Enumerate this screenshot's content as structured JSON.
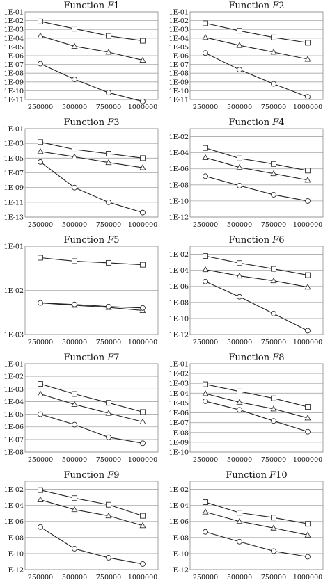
{
  "chart_data": [
    {
      "type": "line",
      "title": "Function F1",
      "y_scale": "log",
      "x": [
        250000,
        500000,
        750000,
        1000000
      ],
      "x_tick_labels": [
        "250000",
        "500000",
        "750000",
        "1000000"
      ],
      "ylim": [
        "1E-11",
        "1E-01"
      ],
      "y_tick_labels": [
        "1E-01",
        "1E-02",
        "1E-03",
        "1E-04",
        "1E-05",
        "1E-06",
        "1E-07",
        "1E-08",
        "1E-09",
        "1E-10",
        "1E-11"
      ],
      "grid": true,
      "series": [
        {
          "marker": "square",
          "values": [
            0.008,
            0.0012,
            0.00018,
            5e-05
          ]
        },
        {
          "marker": "triangle",
          "values": [
            0.00018,
            1.2e-05,
            2.5e-06,
            3e-07
          ]
        },
        {
          "marker": "circle",
          "values": [
            1.2e-07,
            2e-09,
            6e-11,
            6e-12
          ]
        }
      ]
    },
    {
      "type": "line",
      "title": "Function F2",
      "y_scale": "log",
      "x": [
        250000,
        500000,
        750000,
        1000000
      ],
      "x_tick_labels": [
        "250000",
        "500000",
        "750000",
        "1000000"
      ],
      "ylim": [
        "1E-11",
        "1E-01"
      ],
      "y_tick_labels": [
        "1E-01",
        "1E-02",
        "1E-03",
        "1E-04",
        "1E-05",
        "1E-06",
        "1E-07",
        "1E-08",
        "1E-09",
        "1E-10",
        "1E-11"
      ],
      "grid": true,
      "series": [
        {
          "marker": "square",
          "values": [
            0.005,
            0.0007,
            0.00012,
            3e-05
          ]
        },
        {
          "marker": "triangle",
          "values": [
            0.00012,
            1.5e-05,
            2.5e-06,
            4e-07
          ]
        },
        {
          "marker": "circle",
          "values": [
            2e-06,
            2.5e-08,
            6e-10,
            2e-11
          ]
        }
      ]
    },
    {
      "type": "line",
      "title": "Function F3",
      "y_scale": "log",
      "x": [
        250000,
        500000,
        750000,
        1000000
      ],
      "x_tick_labels": [
        "250000",
        "500000",
        "750000",
        "1000000"
      ],
      "ylim": [
        "1E-13",
        "1E-01"
      ],
      "y_tick_labels": [
        "1E-01",
        "1E-03",
        "1E-05",
        "1E-07",
        "1E-09",
        "1E-11",
        "1E-13"
      ],
      "grid": true,
      "series": [
        {
          "marker": "square",
          "values": [
            0.0015,
            0.00015,
            4e-05,
            1e-05
          ]
        },
        {
          "marker": "triangle",
          "values": [
            8e-05,
            1.5e-05,
            2.5e-06,
            5e-07
          ]
        },
        {
          "marker": "circle",
          "values": [
            3e-06,
            1e-09,
            1e-11,
            4e-13
          ]
        }
      ]
    },
    {
      "type": "line",
      "title": "Function F4",
      "y_scale": "log",
      "x": [
        250000,
        500000,
        750000,
        1000000
      ],
      "x_tick_labels": [
        "250000",
        "500000",
        "750000",
        "1000000"
      ],
      "ylim": [
        "1E-12",
        "1E-01"
      ],
      "y_tick_labels": [
        "1E-02",
        "1E-04",
        "1E-06",
        "1E-08",
        "1E-10",
        "1E-12"
      ],
      "grid": true,
      "series": [
        {
          "marker": "square",
          "values": [
            0.0004,
            2e-05,
            4e-06,
            6e-07
          ]
        },
        {
          "marker": "triangle",
          "values": [
            2.5e-05,
            1.5e-06,
            2.5e-07,
            4e-08
          ]
        },
        {
          "marker": "circle",
          "values": [
            1.2e-07,
            8e-09,
            6e-10,
            1e-10
          ]
        }
      ]
    },
    {
      "type": "line",
      "title": "Function F5",
      "y_scale": "log",
      "x": [
        250000,
        500000,
        750000,
        1000000
      ],
      "x_tick_labels": [
        "250000",
        "500000",
        "750000",
        "1000000"
      ],
      "ylim": [
        "1E-03",
        "1E-01"
      ],
      "y_tick_labels": [
        "1E-01",
        "1E-02",
        "1E-03"
      ],
      "grid": true,
      "series": [
        {
          "marker": "square",
          "values": [
            0.055,
            0.046,
            0.042,
            0.038
          ]
        },
        {
          "marker": "triangle",
          "values": [
            0.0052,
            0.0046,
            0.0041,
            0.0035
          ]
        },
        {
          "marker": "circle",
          "values": [
            0.0052,
            0.0048,
            0.0043,
            0.004
          ]
        }
      ]
    },
    {
      "type": "line",
      "title": "Function F6",
      "y_scale": "log",
      "x": [
        250000,
        500000,
        750000,
        1000000
      ],
      "x_tick_labels": [
        "250000",
        "500000",
        "750000",
        "1000000"
      ],
      "ylim": [
        "1E-12",
        "1E-01"
      ],
      "y_tick_labels": [
        "1E-02",
        "1E-04",
        "1E-06",
        "1E-08",
        "1E-10",
        "1E-12"
      ],
      "grid": true,
      "series": [
        {
          "marker": "square",
          "values": [
            0.006,
            0.0008,
            0.00015,
            2.5e-05
          ]
        },
        {
          "marker": "triangle",
          "values": [
            0.00012,
            2e-05,
            5e-06,
            8e-07
          ]
        },
        {
          "marker": "circle",
          "values": [
            4e-06,
            5e-08,
            4e-10,
            3e-12
          ]
        }
      ]
    },
    {
      "type": "line",
      "title": "Function F7",
      "y_scale": "log",
      "x": [
        250000,
        500000,
        750000,
        1000000
      ],
      "x_tick_labels": [
        "250000",
        "500000",
        "750000",
        "1000000"
      ],
      "ylim": [
        "1E-08",
        "1E-01"
      ],
      "y_tick_labels": [
        "1E-01",
        "1E-02",
        "1E-03",
        "1E-04",
        "1E-05",
        "1E-06",
        "1E-07",
        "1E-08"
      ],
      "grid": true,
      "series": [
        {
          "marker": "square",
          "values": [
            0.0025,
            0.0004,
            8e-05,
            1.5e-05
          ]
        },
        {
          "marker": "triangle",
          "values": [
            0.0004,
            6e-05,
            1.2e-05,
            2.5e-06
          ]
        },
        {
          "marker": "circle",
          "values": [
            1e-05,
            1.5e-06,
            1.5e-07,
            5e-08
          ]
        }
      ]
    },
    {
      "type": "line",
      "title": "Function F8",
      "y_scale": "log",
      "x": [
        250000,
        500000,
        750000,
        1000000
      ],
      "x_tick_labels": [
        "250000",
        "500000",
        "750000",
        "1000000"
      ],
      "ylim": [
        "1E-10",
        "1E-01"
      ],
      "y_tick_labels": [
        "1E-01",
        "1E-02",
        "1E-03",
        "1E-04",
        "1E-05",
        "1E-06",
        "1E-07",
        "1E-08",
        "1E-09",
        "1E-10"
      ],
      "grid": true,
      "series": [
        {
          "marker": "square",
          "values": [
            0.0008,
            0.00015,
            3e-05,
            4e-06
          ]
        },
        {
          "marker": "triangle",
          "values": [
            9e-05,
            1.2e-05,
            2.5e-06,
            3e-07
          ]
        },
        {
          "marker": "circle",
          "values": [
            1.5e-05,
            2e-06,
            1.5e-07,
            1.2e-08
          ]
        }
      ]
    },
    {
      "type": "line",
      "title": "Function F9",
      "y_scale": "log",
      "x": [
        250000,
        500000,
        750000,
        1000000
      ],
      "x_tick_labels": [
        "250000",
        "500000",
        "750000",
        "1000000"
      ],
      "ylim": [
        "1E-12",
        "1E-01"
      ],
      "y_tick_labels": [
        "1E-02",
        "1E-04",
        "1E-06",
        "1E-08",
        "1E-10",
        "1E-12"
      ],
      "grid": true,
      "series": [
        {
          "marker": "square",
          "values": [
            0.008,
            0.0008,
            0.00012,
            5e-06
          ]
        },
        {
          "marker": "triangle",
          "values": [
            0.0005,
            3e-05,
            5e-06,
            3e-07
          ]
        },
        {
          "marker": "circle",
          "values": [
            2e-07,
            4e-10,
            3e-11,
            5e-12
          ]
        }
      ]
    },
    {
      "type": "line",
      "title": "Function F10",
      "y_scale": "log",
      "x": [
        250000,
        500000,
        750000,
        1000000
      ],
      "x_tick_labels": [
        "250000",
        "500000",
        "750000",
        "1000000"
      ],
      "ylim": [
        "1E-12",
        "1E-01"
      ],
      "y_tick_labels": [
        "1E-02",
        "1E-04",
        "1E-06",
        "1E-08",
        "1E-10",
        "1E-12"
      ],
      "grid": true,
      "series": [
        {
          "marker": "square",
          "values": [
            0.00025,
            1.2e-05,
            3e-06,
            5e-07
          ]
        },
        {
          "marker": "triangle",
          "values": [
            1.5e-05,
            1e-06,
            1.5e-07,
            2e-08
          ]
        },
        {
          "marker": "circle",
          "values": [
            5e-08,
            3e-09,
            2e-10,
            4e-11
          ]
        }
      ]
    }
  ]
}
